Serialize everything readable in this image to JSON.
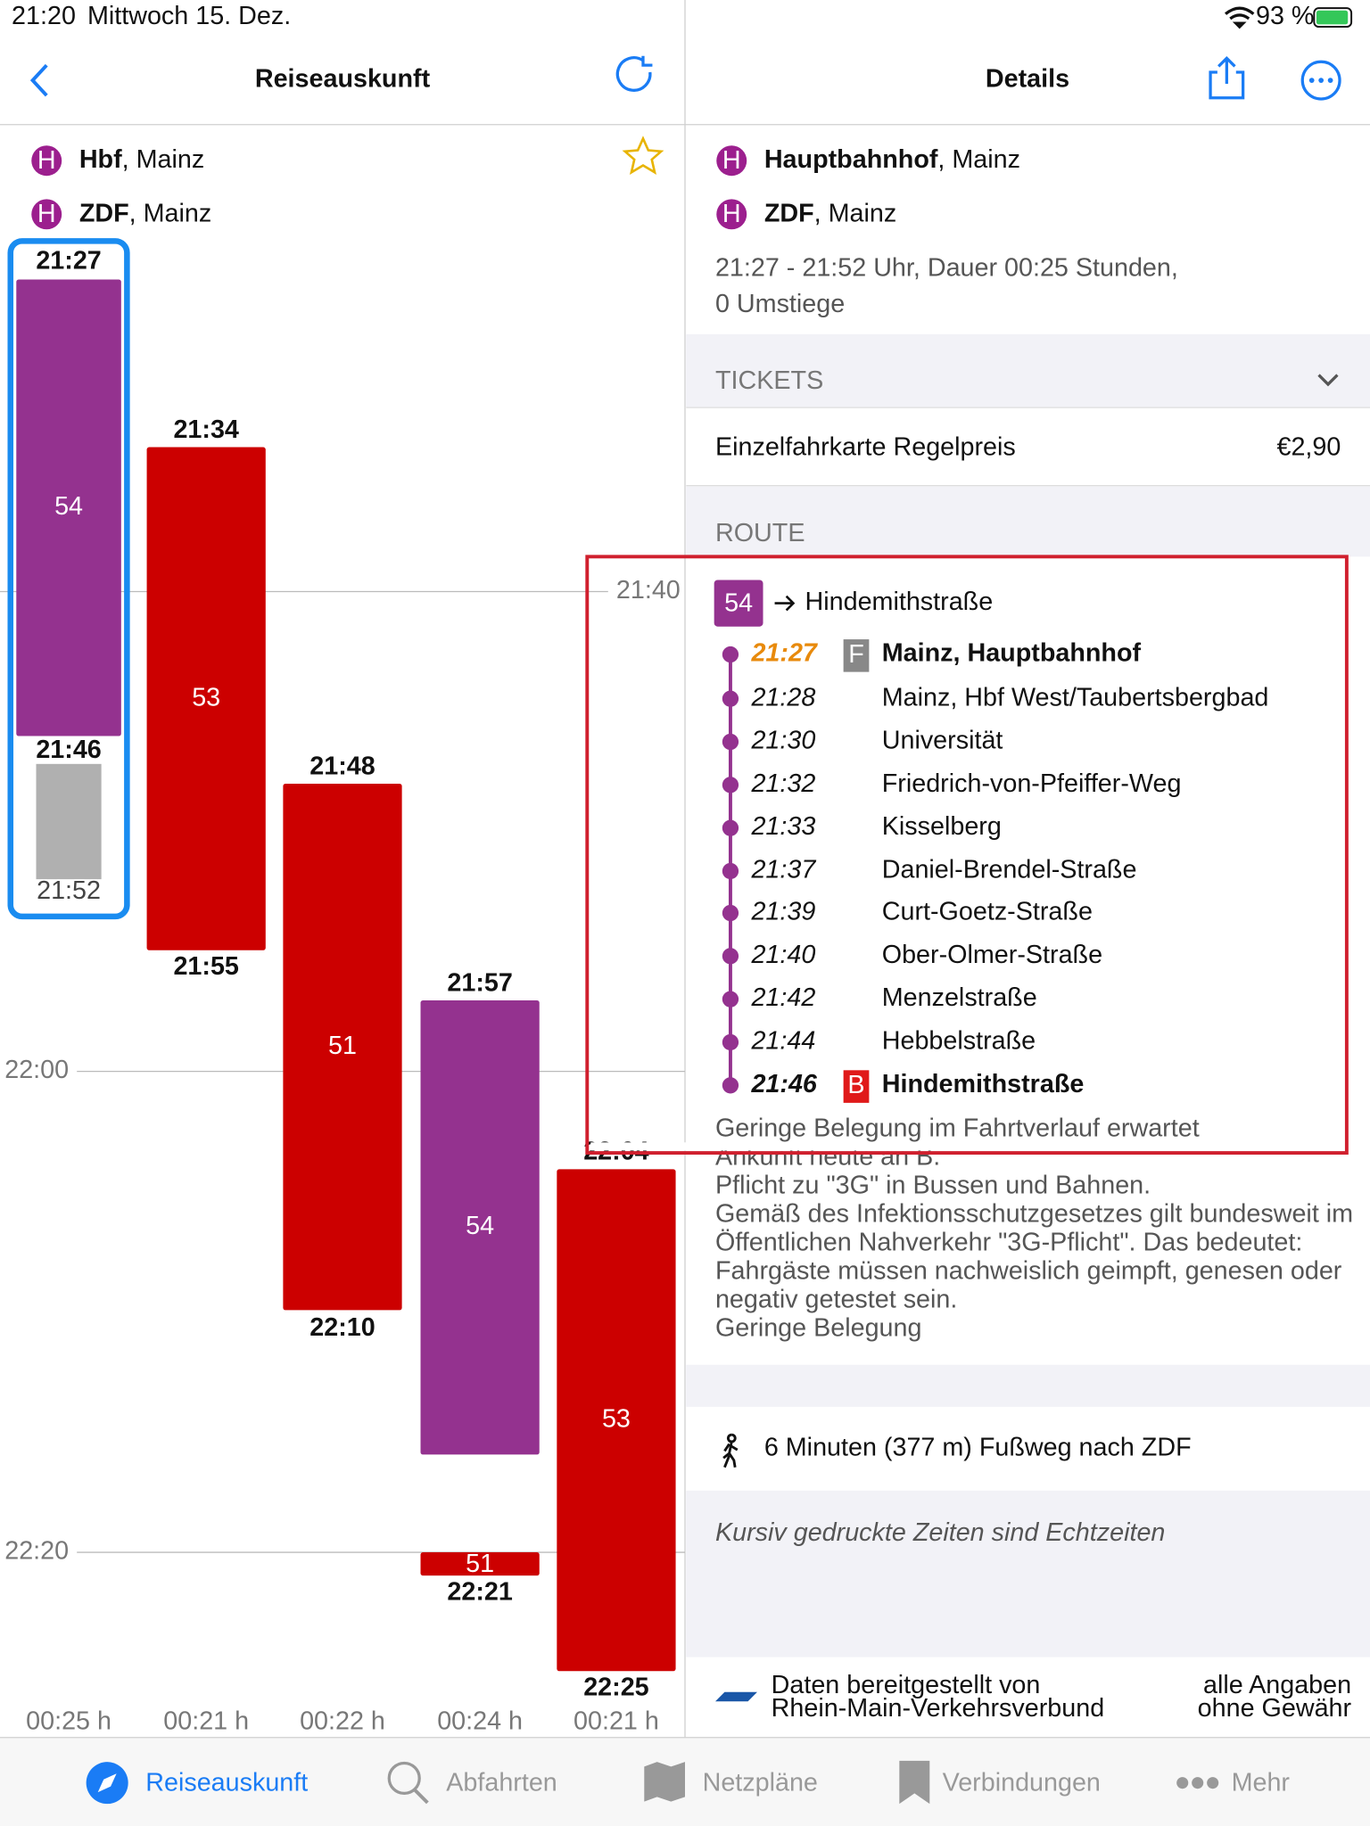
{
  "status_bar": {
    "time": "21:20",
    "date": "Mittwoch 15. Dez.",
    "battery": "93 %"
  },
  "left": {
    "title": "Reiseauskunft",
    "from": {
      "name": "Hbf",
      "city": ", Mainz"
    },
    "to": {
      "name": "ZDF",
      "city": ", Mainz"
    },
    "time_labels": [
      "21:40",
      "22:00",
      "22:20"
    ],
    "journeys": [
      {
        "dep": "21:27",
        "arr": "21:52",
        "duration": "00:25 h",
        "legs": [
          {
            "line": "54",
            "end": "21:46"
          }
        ]
      },
      {
        "dep": "21:34",
        "arr": "21:55",
        "duration": "00:21 h",
        "legs": [
          {
            "line": "53"
          }
        ]
      },
      {
        "dep": "21:48",
        "arr": "22:10",
        "duration": "00:22 h",
        "legs": [
          {
            "line": "51"
          }
        ]
      },
      {
        "dep": "21:57",
        "arr": "22:21",
        "duration": "00:24 h",
        "legs": [
          {
            "line": "54"
          },
          {
            "line": "51"
          }
        ]
      },
      {
        "dep": "22:04",
        "arr": "22:25",
        "duration": "00:21 h",
        "legs": [
          {
            "line": "53"
          }
        ]
      }
    ]
  },
  "right": {
    "title": "Details",
    "from": {
      "name": "Hauptbahnhof",
      "city": ", Mainz"
    },
    "to": {
      "name": "ZDF",
      "city": ", Mainz"
    },
    "summary": [
      "21:27 - 21:52 Uhr, Dauer 00:25 Stunden,",
      "0 Umstiege"
    ],
    "tickets": {
      "heading": "TICKETS",
      "name": "Einzelfahrkarte Regelpreis",
      "price": "€2,90"
    },
    "route": {
      "heading": "ROUTE",
      "line": "54",
      "direction": "Hindemithstraße",
      "stops": [
        {
          "time": "21:27",
          "badge": "F",
          "name": "Mainz, Hauptbahnhof"
        },
        {
          "time": "21:28",
          "name": "Mainz, Hbf West/Taubertsbergbad"
        },
        {
          "time": "21:30",
          "name": "Universität"
        },
        {
          "time": "21:32",
          "name": "Friedrich-von-Pfeiffer-Weg"
        },
        {
          "time": "21:33",
          "name": "Kisselberg"
        },
        {
          "time": "21:37",
          "name": "Daniel-Brendel-Straße"
        },
        {
          "time": "21:39",
          "name": "Curt-Goetz-Straße"
        },
        {
          "time": "21:40",
          "name": "Ober-Olmer-Straße"
        },
        {
          "time": "21:42",
          "name": "Menzelstraße"
        },
        {
          "time": "21:44",
          "name": "Hebbelstraße"
        },
        {
          "time": "21:46",
          "badge": "B",
          "name": "Hindemithstraße"
        }
      ],
      "notes": [
        "Geringe Belegung im Fahrtverlauf erwartet",
        "Ankunft heute an B.",
        "Pflicht zu \"3G\" in Bussen und Bahnen.",
        "Gemäß des Infektionsschutzgesetzes gilt bundesweit im",
        "Öffentlichen Nahverkehr \"3G-Pflicht\". Das bedeutet:",
        "Fahrgäste müssen nachweislich geimpft, genesen oder",
        "negativ getestet sein.",
        "Geringe Belegung"
      ]
    },
    "walk": "6 Minuten (377 m) Fußweg nach ZDF",
    "realtime_note": "Kursiv gedruckte Zeiten sind Echtzeiten",
    "footer": {
      "source": [
        "Daten bereitgestellt von",
        "Rhein-Main-Verkehrsverbund"
      ],
      "disclaimer": [
        "alle Angaben",
        "ohne Gewähr"
      ]
    }
  },
  "tab_bar": [
    "Reiseauskunft",
    "Abfahrten",
    "Netzpläne",
    "Verbindungen",
    "Mehr"
  ]
}
